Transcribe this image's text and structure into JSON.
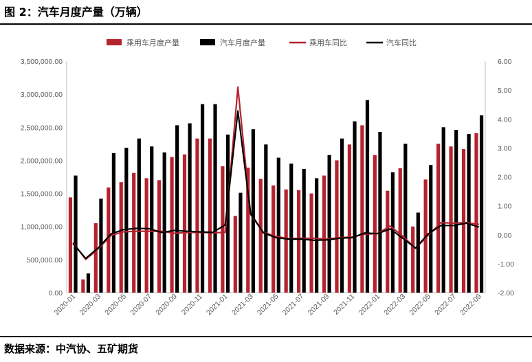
{
  "header": {
    "title": "图 2：汽车月度产量（万辆）"
  },
  "footer": {
    "source": "数据来源：中汽协、五矿期货"
  },
  "chart_data": {
    "type": "bar+line",
    "title": "",
    "x": [
      "2020-01",
      "2020-02",
      "2020-03",
      "2020-04",
      "2020-05",
      "2020-06",
      "2020-07",
      "2020-08",
      "2020-09",
      "2020-10",
      "2020-11",
      "2020-12",
      "2021-01",
      "2021-02",
      "2021-03",
      "2021-04",
      "2021-05",
      "2021-06",
      "2021-07",
      "2021-08",
      "2021-09",
      "2021-10",
      "2021-11",
      "2021-12",
      "2022-01",
      "2022-02",
      "2022-03",
      "2022-04",
      "2022-05",
      "2022-06",
      "2022-07",
      "2022-08",
      "2022-09"
    ],
    "x_tick_labels": [
      "2020-01",
      "2020-03",
      "2020-05",
      "2020-07",
      "2020-09",
      "2020-11",
      "2021-01",
      "2021-03",
      "2021-05",
      "2021-07",
      "2021-09",
      "2021-11",
      "2022-01",
      "2022-03",
      "2022-05",
      "2022-07",
      "2022-09"
    ],
    "y_left": {
      "lim": [
        0,
        3500000
      ],
      "ticks": [
        "0.00",
        "500,000.00",
        "1,000,000.00",
        "1,500,000.00",
        "2,000,000.00",
        "2,500,000.00",
        "3,000,000.00",
        "3,500,000.00"
      ]
    },
    "y_right": {
      "lim": [
        -2,
        6
      ],
      "ticks": [
        "-2.00",
        "-1.00",
        "0.00",
        "1.00",
        "2.00",
        "3.00",
        "4.00",
        "5.00",
        "6.00"
      ]
    },
    "legend_position": "top",
    "gridlines": false,
    "series": [
      {
        "name": "乘用车月度产量",
        "type": "bar",
        "axis": "left",
        "color": "#b5232f",
        "values": [
          1440000,
          200000,
          1050000,
          1590000,
          1670000,
          1810000,
          1730000,
          1700000,
          2050000,
          2090000,
          2330000,
          2330000,
          1910000,
          1160000,
          1890000,
          1720000,
          1620000,
          1560000,
          1550000,
          1500000,
          1770000,
          2000000,
          2240000,
          2530000,
          2080000,
          1540000,
          1880000,
          1000000,
          1710000,
          2250000,
          2210000,
          2170000,
          2410000
        ]
      },
      {
        "name": "汽车月度产量",
        "type": "bar",
        "axis": "left",
        "color": "#000000",
        "values": [
          1770000,
          290000,
          1420000,
          2110000,
          2190000,
          2330000,
          2210000,
          2120000,
          2530000,
          2560000,
          2850000,
          2850000,
          2390000,
          1510000,
          2470000,
          2240000,
          2040000,
          1950000,
          1870000,
          1730000,
          2080000,
          2330000,
          2590000,
          2910000,
          2430000,
          1820000,
          2250000,
          1210000,
          1930000,
          2500000,
          2460000,
          2400000,
          2680000
        ]
      },
      {
        "name": "乘用车同比",
        "type": "line",
        "axis": "right",
        "color": "#b5232f",
        "values": [
          -0.27,
          -0.85,
          -0.48,
          -0.02,
          0.1,
          0.12,
          0.12,
          0.12,
          0.05,
          0.08,
          0.08,
          0.07,
          0.08,
          5.1,
          0.7,
          0.09,
          -0.06,
          -0.13,
          -0.12,
          -0.12,
          -0.15,
          -0.1,
          -0.08,
          0.02,
          0.04,
          0.3,
          -0.05,
          -0.47,
          -0.02,
          0.42,
          0.4,
          0.42,
          0.36
        ]
      }
    ],
    "series_note_unused": "",
    "series_2": {
      "name": "汽车同比",
      "type": "line",
      "axis": "right",
      "color": "#000000",
      "values": [
        -0.3,
        -0.82,
        -0.45,
        0.03,
        0.18,
        0.22,
        0.21,
        0.08,
        0.15,
        0.12,
        0.1,
        0.08,
        0.34,
        4.28,
        0.74,
        0.07,
        -0.1,
        -0.15,
        -0.15,
        -0.19,
        -0.18,
        -0.12,
        -0.1,
        0.06,
        0.04,
        0.2,
        -0.12,
        -0.46,
        0.03,
        0.32,
        0.32,
        0.4,
        0.27
      ]
    }
  }
}
